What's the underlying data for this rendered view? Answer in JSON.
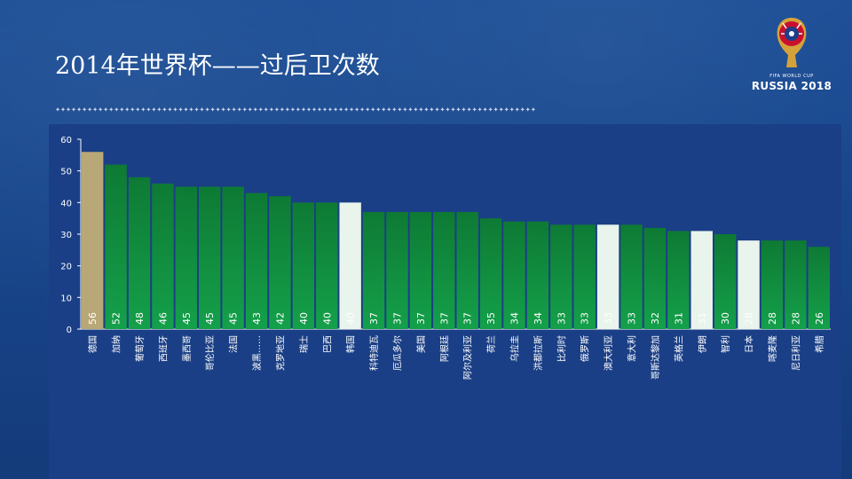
{
  "slide": {
    "title": "2014年世界杯——过后卫次数",
    "divider_text": "✦✦✦✦✦✦✦✦✦✦✦✦✦✦✦✦✦✦✦✦✦✦✦✦✦✦✦✦✦✦✦✦✦✦✦✦✦✦✦✦✦✦✦✦✦✦✦✦✦✦✦✦✦✦✦✦✦✦✦✦✦✦✦✦✦✦✦✦✦✦✦✦✦✦✦✦✦✦✦✦✦✦✦✦✦✦✦✦✦✦"
  },
  "logo": {
    "icon": "world-cup-trophy-icon",
    "small_text": "FIFA WORLD CUP",
    "big_text": "RUSSIA 2018"
  },
  "colors": {
    "default_bar": "#0f8a3a",
    "highlight_gold": "#b9a877",
    "highlight_light": "#e8f4ec",
    "axis": "#ffffff"
  },
  "chart_data": {
    "type": "bar",
    "title": "",
    "xlabel": "",
    "ylabel": "",
    "ylim": [
      0,
      60
    ],
    "yticks": [
      0,
      10,
      20,
      30,
      40,
      50,
      60
    ],
    "grid": false,
    "categories": [
      "德国",
      "加纳",
      "葡萄牙",
      "西班牙",
      "墨西哥",
      "哥伦比亚",
      "法国",
      "波黑……",
      "克罗地亚",
      "瑞士",
      "巴西",
      "韩国",
      "科特迪瓦",
      "厄瓜多尔",
      "美国",
      "阿根廷",
      "阿尔及利亚",
      "荷兰",
      "乌拉圭",
      "洪都拉斯",
      "比利时",
      "俄罗斯",
      "澳大利亚",
      "意大利",
      "哥斯达黎加",
      "英格兰",
      "伊朗",
      "智利",
      "日本",
      "喀麦隆",
      "尼日利亚",
      "希腊"
    ],
    "values": [
      56,
      52,
      48,
      46,
      45,
      45,
      45,
      43,
      42,
      40,
      40,
      40,
      37,
      37,
      37,
      37,
      37,
      35,
      34,
      34,
      33,
      33,
      33,
      33,
      32,
      31,
      31,
      30,
      28,
      28,
      28,
      26
    ],
    "highlight": [
      "gold",
      "none",
      "none",
      "none",
      "none",
      "none",
      "none",
      "none",
      "none",
      "none",
      "none",
      "light",
      "none",
      "none",
      "none",
      "none",
      "none",
      "none",
      "none",
      "none",
      "none",
      "none",
      "light",
      "none",
      "none",
      "none",
      "light",
      "none",
      "light",
      "none",
      "none",
      "none"
    ]
  }
}
